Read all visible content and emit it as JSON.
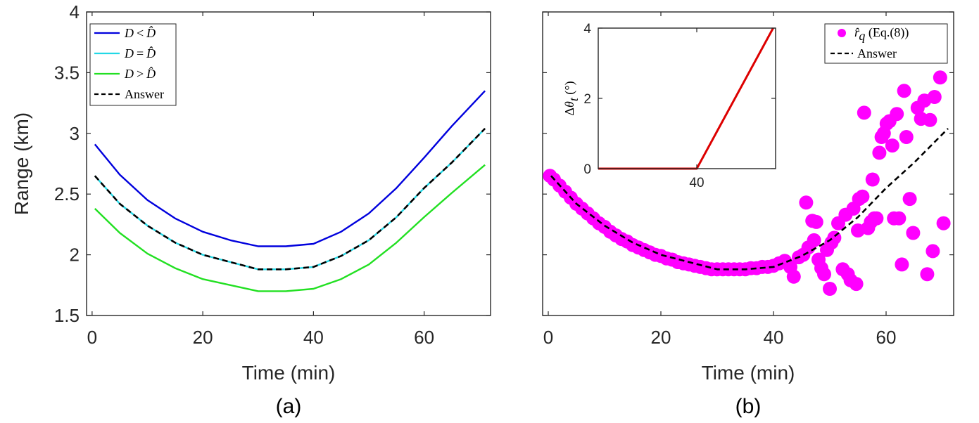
{
  "chart_data": [
    {
      "type": "line",
      "panel_label": "(a)",
      "xlabel": "Time (min)",
      "ylabel": "Range (km)",
      "xlim": [
        -1,
        72
      ],
      "ylim": [
        1.5,
        4
      ],
      "x_ticks": [
        "0",
        "20",
        "40",
        "60"
      ],
      "y_ticks": [
        "1.5",
        "2",
        "2.5",
        "3",
        "3.5",
        "4"
      ],
      "legend_position": "top-left",
      "series": [
        {
          "name": "D < D̂",
          "color": "#0000dd",
          "style": "solid",
          "x": [
            0.5,
            5,
            10,
            15,
            20,
            25,
            30,
            35,
            40,
            45,
            50,
            55,
            60,
            65,
            71
          ],
          "y": [
            2.91,
            2.66,
            2.45,
            2.3,
            2.19,
            2.12,
            2.07,
            2.07,
            2.09,
            2.19,
            2.34,
            2.55,
            2.8,
            3.06,
            3.35
          ]
        },
        {
          "name": "D = D̂",
          "color": "#22d8e6",
          "style": "solid",
          "x": [
            0.5,
            5,
            10,
            15,
            20,
            25,
            30,
            35,
            40,
            45,
            50,
            55,
            60,
            65,
            71
          ],
          "y": [
            2.65,
            2.42,
            2.24,
            2.1,
            2.0,
            1.94,
            1.88,
            1.88,
            1.9,
            1.99,
            2.12,
            2.31,
            2.55,
            2.76,
            3.04
          ]
        },
        {
          "name": "D > D̂",
          "color": "#22e022",
          "style": "solid",
          "x": [
            0.5,
            5,
            10,
            15,
            20,
            25,
            30,
            35,
            40,
            45,
            50,
            55,
            60,
            65,
            71
          ],
          "y": [
            2.38,
            2.18,
            2.01,
            1.89,
            1.8,
            1.75,
            1.7,
            1.7,
            1.72,
            1.8,
            1.92,
            2.1,
            2.31,
            2.51,
            2.74
          ]
        },
        {
          "name": "Answer",
          "color": "#000000",
          "style": "dashed",
          "x": [
            0.5,
            5,
            10,
            15,
            20,
            25,
            30,
            35,
            40,
            45,
            50,
            55,
            60,
            65,
            71
          ],
          "y": [
            2.65,
            2.42,
            2.24,
            2.1,
            2.0,
            1.94,
            1.88,
            1.88,
            1.9,
            1.99,
            2.12,
            2.31,
            2.55,
            2.76,
            3.04
          ]
        }
      ]
    },
    {
      "type": "scatter",
      "panel_label": "(b)",
      "xlabel": "Time (min)",
      "ylabel": "",
      "xlim": [
        -1,
        72
      ],
      "ylim": [
        1.5,
        4
      ],
      "x_ticks": [
        "0",
        "20",
        "40",
        "60"
      ],
      "legend_position": "top-right",
      "series": [
        {
          "name": "r̂_q (Eq.(8))",
          "color": "#ff00ff",
          "style": "markers",
          "x": [
            0.3,
            1,
            2,
            3,
            4,
            5,
            6,
            7,
            8,
            9,
            10,
            11,
            12,
            13,
            14,
            15,
            16,
            17,
            18,
            19,
            20,
            21,
            22,
            23,
            24,
            25,
            26,
            27,
            28,
            29,
            30,
            31,
            32,
            33,
            34,
            35,
            36,
            37,
            38,
            39,
            40,
            41,
            42,
            43,
            43.6,
            44.5,
            45.3,
            45.8,
            46.2,
            46.9,
            47.2,
            47.6,
            48,
            48.5,
            49,
            49.5,
            50,
            50.3,
            50.8,
            51.5,
            52.3,
            52.8,
            53.2,
            53.7,
            54.2,
            54.7,
            55,
            55.2,
            55.8,
            56.1,
            56.8,
            57.3,
            57.6,
            57.9,
            58.3,
            58.8,
            59.2,
            59.6,
            60.1,
            60.6,
            61.1,
            61.4,
            61.9,
            62.3,
            62.8,
            63.2,
            63.6,
            64.2,
            64.8,
            65.6,
            66.2,
            66.8,
            67.3,
            67.8,
            68.3,
            68.6,
            69.6,
            70.2
          ],
          "y": [
            2.65,
            2.62,
            2.57,
            2.52,
            2.47,
            2.42,
            2.38,
            2.34,
            2.3,
            2.26,
            2.23,
            2.19,
            2.16,
            2.13,
            2.11,
            2.08,
            2.06,
            2.04,
            2.02,
            2.0,
            1.99,
            1.97,
            1.96,
            1.94,
            1.93,
            1.92,
            1.91,
            1.9,
            1.89,
            1.88,
            1.88,
            1.88,
            1.88,
            1.88,
            1.88,
            1.88,
            1.89,
            1.89,
            1.9,
            1.9,
            1.91,
            1.93,
            1.95,
            1.9,
            1.82,
            1.98,
            2.0,
            2.43,
            2.06,
            2.28,
            2.12,
            2.27,
            1.96,
            1.89,
            1.84,
            2.04,
            1.72,
            2.1,
            2.14,
            2.26,
            1.88,
            2.33,
            1.84,
            1.79,
            2.38,
            1.76,
            2.2,
            2.46,
            2.48,
            3.17,
            2.22,
            2.27,
            2.62,
            2.3,
            2.3,
            2.84,
            2.97,
            3.0,
            3.08,
            3.1,
            2.9,
            2.3,
            3.16,
            2.3,
            1.92,
            3.35,
            2.97,
            2.46,
            2.18,
            3.21,
            3.12,
            3.27,
            1.84,
            3.11,
            2.03,
            3.3,
            3.46,
            2.26
          ]
        },
        {
          "name": "Answer",
          "color": "#000000",
          "style": "dashed",
          "x": [
            0.5,
            5,
            10,
            15,
            20,
            25,
            30,
            35,
            40,
            45,
            50,
            55,
            60,
            65,
            71
          ],
          "y": [
            2.65,
            2.42,
            2.24,
            2.1,
            2.0,
            1.94,
            1.88,
            1.88,
            1.9,
            1.99,
            2.12,
            2.31,
            2.55,
            2.76,
            3.04
          ]
        }
      ]
    },
    {
      "type": "line",
      "inset": true,
      "ylabel": "Δθ_t (°)",
      "xlim": [
        0,
        72
      ],
      "ylim": [
        0,
        4
      ],
      "x_ticks": [
        "40"
      ],
      "y_ticks": [
        "0",
        "2",
        "4"
      ],
      "series": [
        {
          "name": "",
          "color": "#dd0000",
          "style": "solid",
          "x": [
            0,
            40,
            71
          ],
          "y": [
            0,
            0,
            4
          ]
        }
      ]
    }
  ],
  "legends": {
    "a": [
      {
        "var": "D",
        "op": "<",
        "rhs": "D̂"
      },
      {
        "var": "D",
        "op": "=",
        "rhs": "D̂"
      },
      {
        "var": "D",
        "op": ">",
        "rhs": "D̂"
      },
      {
        "label": "Answer"
      }
    ],
    "b": [
      {
        "math": "r̂",
        "sub": "q",
        "text": " (Eq.(8))"
      },
      {
        "label": "Answer"
      }
    ]
  },
  "inset_ylabel": {
    "delta": "Δ",
    "theta": "θ",
    "sub": "t",
    "unit": " (°)"
  }
}
